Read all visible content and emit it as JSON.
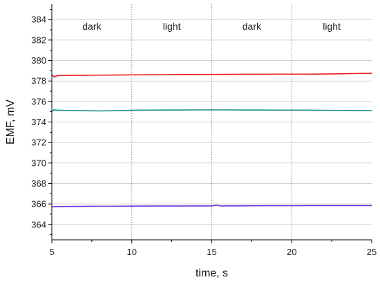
{
  "chart_data": {
    "type": "line",
    "title": "",
    "xlabel": "time, s",
    "ylabel": "EMF, mV",
    "xlim": [
      5,
      25
    ],
    "ylim": [
      362.5,
      385.5
    ],
    "x_ticks": [
      "5",
      "10",
      "15",
      "20",
      "25"
    ],
    "y_ticks": [
      "364",
      "366",
      "368",
      "370",
      "372",
      "374",
      "376",
      "378",
      "380",
      "382",
      "384"
    ],
    "grid": "horizontal gridlines at major y ticks; dotted vertical lines at x = 10, 15, 20",
    "region_dividers": [
      10,
      15,
      20
    ],
    "annotations": [
      {
        "text": "dark",
        "x": 7.5
      },
      {
        "text": "light",
        "x": 12.5
      },
      {
        "text": "dark",
        "x": 17.5
      },
      {
        "text": "light",
        "x": 22.5
      }
    ],
    "series": [
      {
        "color": "#e8191e",
        "x": [
          5.0,
          5.15,
          5.3,
          5.5,
          6,
          7,
          8,
          9,
          10,
          11,
          12,
          13,
          14,
          15,
          16,
          17,
          18,
          19,
          20,
          21,
          22,
          23,
          24,
          25
        ],
        "y": [
          378.6,
          378.4,
          378.5,
          378.55,
          378.55,
          378.56,
          378.57,
          378.58,
          378.6,
          378.61,
          378.62,
          378.63,
          378.63,
          378.64,
          378.65,
          378.66,
          378.66,
          378.67,
          378.67,
          378.67,
          378.68,
          378.7,
          378.73,
          378.75
        ]
      },
      {
        "color": "#138f7e",
        "x": [
          5.0,
          5.15,
          5.3,
          5.5,
          6,
          7,
          8,
          9,
          10,
          11,
          12,
          13,
          14,
          15,
          16,
          17,
          18,
          19,
          20,
          21,
          22,
          23,
          24,
          25
        ],
        "y": [
          375.05,
          375.2,
          375.15,
          375.15,
          375.12,
          375.1,
          375.08,
          375.1,
          375.14,
          375.16,
          375.17,
          375.17,
          375.18,
          375.18,
          375.18,
          375.17,
          375.17,
          375.16,
          375.16,
          375.15,
          375.14,
          375.13,
          375.12,
          375.11
        ]
      },
      {
        "color": "#6a2fd8",
        "x": [
          5.0,
          5.2,
          5.5,
          6,
          7,
          8,
          9,
          10,
          11,
          12,
          13,
          14,
          15,
          15.3,
          15.6,
          16,
          17,
          18,
          19,
          20,
          21,
          22,
          23,
          24,
          25
        ],
        "y": [
          365.7,
          365.75,
          365.75,
          365.76,
          365.77,
          365.78,
          365.78,
          365.79,
          365.8,
          365.8,
          365.8,
          365.81,
          365.81,
          365.88,
          365.8,
          365.82,
          365.82,
          365.83,
          365.83,
          365.83,
          365.84,
          365.84,
          365.84,
          365.84,
          365.84
        ]
      }
    ]
  }
}
